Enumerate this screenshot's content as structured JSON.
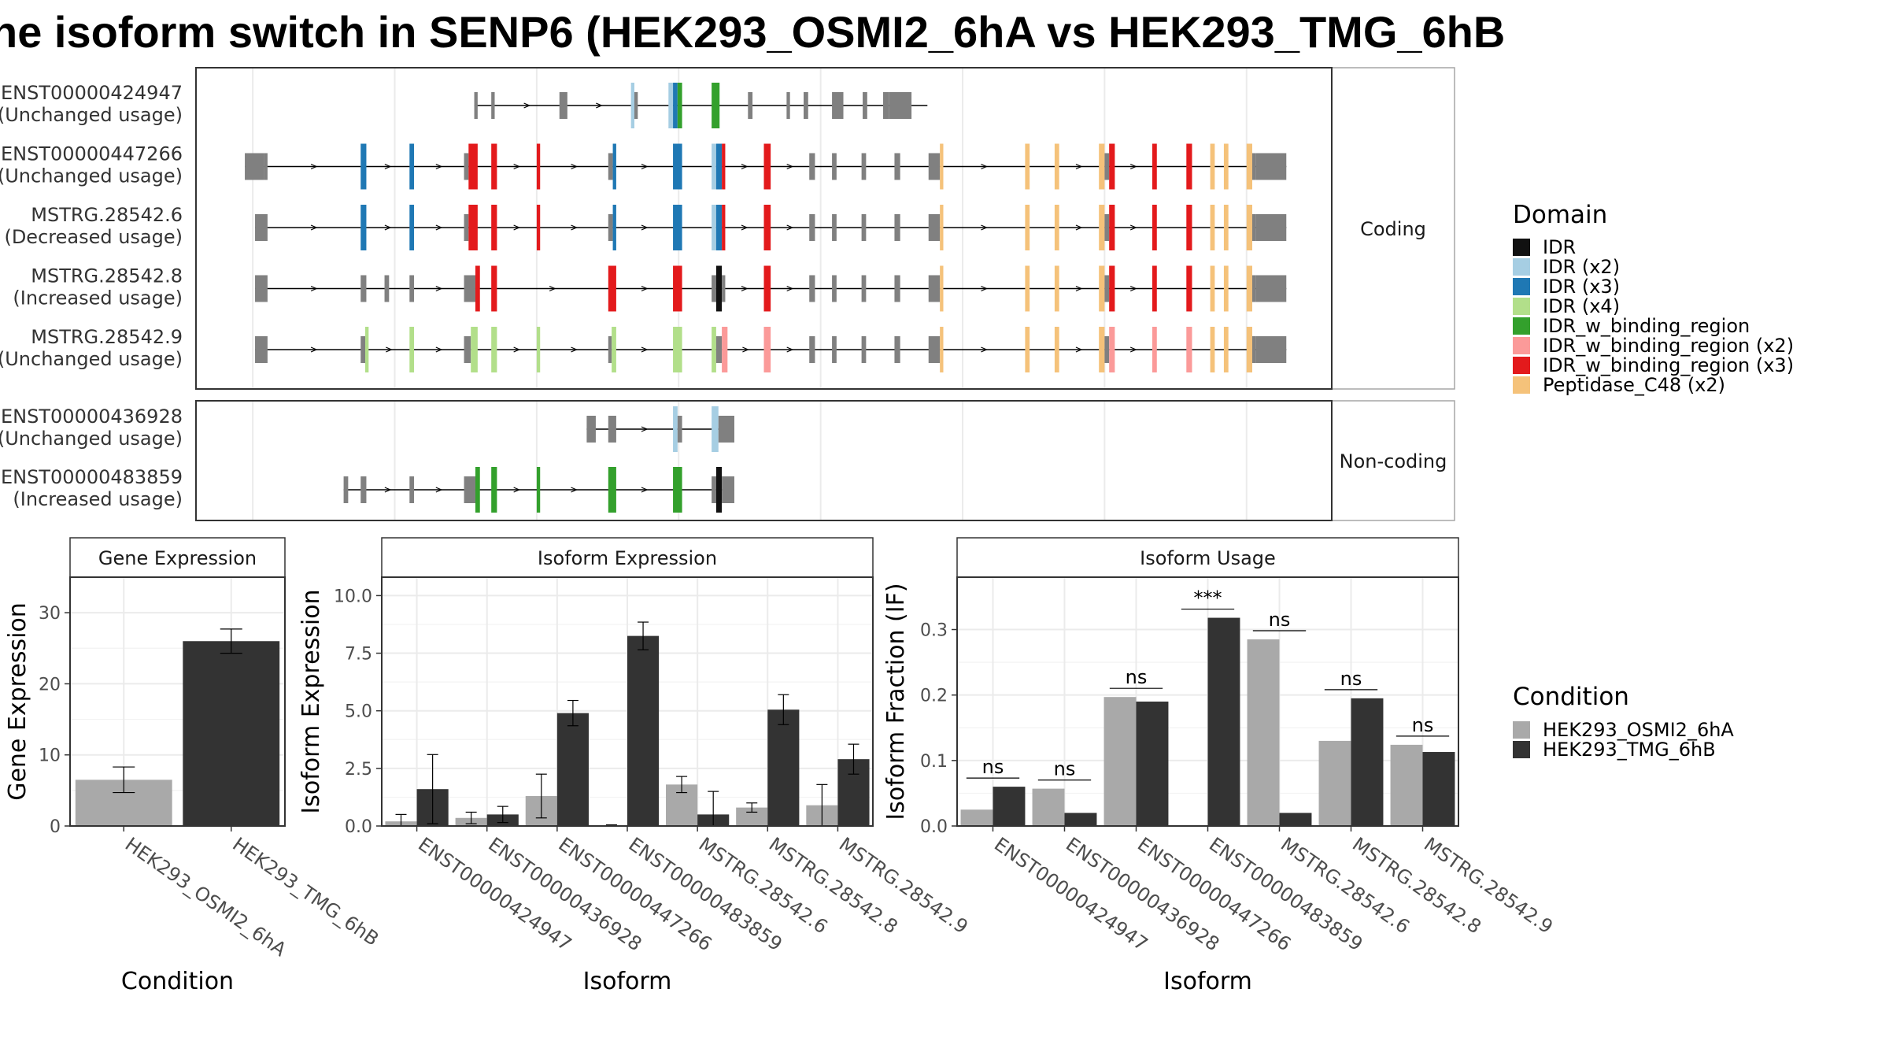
{
  "title": "he isoform switch in SENP6 (HEK293_OSMI2_6hA vs HEK293_TMG_6hB",
  "structure": {
    "x_range": [
      0,
      100
    ],
    "coding_label": "Coding",
    "noncoding_label": "Non-coding",
    "domain_colors": {
      "IDR": "#111111",
      "IDR (x2)": "#A6CEE3",
      "IDR (x3)": "#1F78B4",
      "IDR (x4)": "#B2DF8A",
      "IDR_w_binding_region": "#33A02C",
      "IDR_w_binding_region (x2)": "#FB9A99",
      "IDR_w_binding_region (x3)": "#E31A1C",
      "Peptidase_C48 (x2)": "#F5C27A",
      "utr": "#808080"
    },
    "coding": [
      {
        "id": "ENST00000424947",
        "usage": "(Unchanged usage)",
        "start": 24.5,
        "end": 64.4,
        "exons": [
          [
            24.5,
            24.8,
            "utr"
          ],
          [
            26.0,
            26.3,
            "utr"
          ],
          [
            32.0,
            32.7,
            "utr"
          ],
          [
            38.3,
            38.6,
            "IDR (x2)"
          ],
          [
            38.6,
            38.9,
            "utr"
          ],
          [
            41.6,
            42.0,
            "IDR (x2)"
          ],
          [
            42.0,
            42.4,
            "IDR (x3)"
          ],
          [
            42.4,
            42.8,
            "IDR_w_binding_region"
          ],
          [
            45.4,
            46.1,
            "IDR_w_binding_region"
          ],
          [
            48.6,
            49.0,
            "utr"
          ],
          [
            52.0,
            52.3,
            "utr"
          ],
          [
            53.5,
            53.9,
            "utr"
          ],
          [
            56.0,
            57.0,
            "utr"
          ],
          [
            58.7,
            59.1,
            "utr"
          ],
          [
            60.5,
            61.0,
            "utr"
          ],
          [
            61.0,
            63.0,
            "utr"
          ]
        ]
      },
      {
        "id": "ENST00000447266",
        "usage": "(Unchanged usage)",
        "start": 4.3,
        "end": 96.0,
        "exons": [
          [
            4.3,
            6.0,
            "utr"
          ],
          [
            6.0,
            6.3,
            "utr"
          ],
          [
            14.5,
            15.0,
            "IDR (x3)"
          ],
          [
            18.8,
            19.2,
            "IDR (x3)"
          ],
          [
            23.6,
            24.0,
            "utr"
          ],
          [
            24.0,
            24.8,
            "IDR_w_binding_region (x3)"
          ],
          [
            26.0,
            26.5,
            "IDR_w_binding_region (x3)"
          ],
          [
            30.0,
            30.3,
            "IDR_w_binding_region (x3)"
          ],
          [
            36.3,
            36.7,
            "utr"
          ],
          [
            36.7,
            37.0,
            "IDR (x3)"
          ],
          [
            42.0,
            42.8,
            "IDR (x3)"
          ],
          [
            45.4,
            45.8,
            "IDR (x2)"
          ],
          [
            45.8,
            46.3,
            "IDR (x3)"
          ],
          [
            46.3,
            46.6,
            "IDR_w_binding_region (x3)"
          ],
          [
            50.0,
            50.6,
            "IDR_w_binding_region (x3)"
          ],
          [
            54.0,
            54.5,
            "utr"
          ],
          [
            56.0,
            56.4,
            "utr"
          ],
          [
            58.6,
            59.0,
            "utr"
          ],
          [
            61.5,
            62.0,
            "utr"
          ],
          [
            64.5,
            65.5,
            "utr"
          ],
          [
            65.5,
            65.8,
            "Peptidase_C48 (x2)"
          ],
          [
            73.0,
            73.4,
            "Peptidase_C48 (x2)"
          ],
          [
            75.6,
            76.0,
            "Peptidase_C48 (x2)"
          ],
          [
            79.5,
            80.0,
            "Peptidase_C48 (x2)"
          ],
          [
            80.0,
            80.4,
            "utr"
          ],
          [
            80.4,
            80.9,
            "IDR_w_binding_region (x3)"
          ],
          [
            84.2,
            84.6,
            "IDR_w_binding_region (x3)"
          ],
          [
            87.2,
            87.7,
            "IDR_w_binding_region (x3)"
          ],
          [
            89.3,
            89.7,
            "Peptidase_C48 (x2)"
          ],
          [
            90.5,
            90.9,
            "Peptidase_C48 (x2)"
          ],
          [
            92.5,
            93.0,
            "Peptidase_C48 (x2)"
          ],
          [
            93.0,
            93.3,
            "utr"
          ],
          [
            93.3,
            96.0,
            "utr"
          ]
        ]
      },
      {
        "id": "MSTRG.28542.6",
        "usage": "(Decreased usage)",
        "start": 5.2,
        "end": 96.0,
        "exons": [
          [
            5.2,
            6.3,
            "utr"
          ],
          [
            14.5,
            15.0,
            "IDR (x3)"
          ],
          [
            18.8,
            19.2,
            "IDR (x3)"
          ],
          [
            23.6,
            24.0,
            "utr"
          ],
          [
            24.0,
            24.8,
            "IDR_w_binding_region (x3)"
          ],
          [
            26.0,
            26.5,
            "IDR_w_binding_region (x3)"
          ],
          [
            30.0,
            30.3,
            "IDR_w_binding_region (x3)"
          ],
          [
            36.3,
            36.7,
            "utr"
          ],
          [
            36.7,
            37.0,
            "IDR (x3)"
          ],
          [
            42.0,
            42.8,
            "IDR (x3)"
          ],
          [
            45.4,
            45.8,
            "IDR (x2)"
          ],
          [
            45.8,
            46.3,
            "IDR (x3)"
          ],
          [
            46.3,
            46.6,
            "IDR_w_binding_region (x3)"
          ],
          [
            50.0,
            50.6,
            "IDR_w_binding_region (x3)"
          ],
          [
            54.0,
            54.5,
            "utr"
          ],
          [
            56.0,
            56.4,
            "utr"
          ],
          [
            58.6,
            59.0,
            "utr"
          ],
          [
            61.5,
            62.0,
            "utr"
          ],
          [
            64.5,
            65.5,
            "utr"
          ],
          [
            65.5,
            65.8,
            "Peptidase_C48 (x2)"
          ],
          [
            73.0,
            73.4,
            "Peptidase_C48 (x2)"
          ],
          [
            75.6,
            76.0,
            "Peptidase_C48 (x2)"
          ],
          [
            79.5,
            80.0,
            "Peptidase_C48 (x2)"
          ],
          [
            80.0,
            80.4,
            "utr"
          ],
          [
            80.4,
            80.9,
            "IDR_w_binding_region (x3)"
          ],
          [
            84.2,
            84.6,
            "IDR_w_binding_region (x3)"
          ],
          [
            87.2,
            87.7,
            "IDR_w_binding_region (x3)"
          ],
          [
            89.3,
            89.7,
            "Peptidase_C48 (x2)"
          ],
          [
            90.5,
            90.9,
            "Peptidase_C48 (x2)"
          ],
          [
            92.5,
            93.0,
            "Peptidase_C48 (x2)"
          ],
          [
            93.0,
            93.3,
            "utr"
          ],
          [
            93.3,
            96.0,
            "utr"
          ]
        ]
      },
      {
        "id": "MSTRG.28542.8",
        "usage": "(Increased usage)",
        "start": 5.2,
        "end": 96.0,
        "exons": [
          [
            5.2,
            6.3,
            "utr"
          ],
          [
            14.5,
            15.0,
            "utr"
          ],
          [
            16.6,
            17.0,
            "utr"
          ],
          [
            18.8,
            19.2,
            "utr"
          ],
          [
            23.6,
            24.6,
            "utr"
          ],
          [
            24.6,
            25.0,
            "IDR_w_binding_region (x3)"
          ],
          [
            26.0,
            26.5,
            "IDR_w_binding_region (x3)"
          ],
          [
            36.3,
            37.0,
            "IDR_w_binding_region (x3)"
          ],
          [
            42.0,
            42.8,
            "IDR_w_binding_region (x3)"
          ],
          [
            45.4,
            45.8,
            "utr"
          ],
          [
            45.8,
            46.3,
            "IDR"
          ],
          [
            46.3,
            46.6,
            "utr"
          ],
          [
            50.0,
            50.6,
            "IDR_w_binding_region (x3)"
          ],
          [
            54.0,
            54.5,
            "utr"
          ],
          [
            56.0,
            56.4,
            "utr"
          ],
          [
            58.6,
            59.0,
            "utr"
          ],
          [
            61.5,
            62.0,
            "utr"
          ],
          [
            64.5,
            65.5,
            "utr"
          ],
          [
            65.5,
            65.8,
            "Peptidase_C48 (x2)"
          ],
          [
            73.0,
            73.4,
            "Peptidase_C48 (x2)"
          ],
          [
            75.6,
            76.0,
            "Peptidase_C48 (x2)"
          ],
          [
            79.5,
            80.0,
            "Peptidase_C48 (x2)"
          ],
          [
            80.0,
            80.4,
            "utr"
          ],
          [
            80.4,
            80.9,
            "IDR_w_binding_region (x3)"
          ],
          [
            84.2,
            84.6,
            "IDR_w_binding_region (x3)"
          ],
          [
            87.2,
            87.7,
            "IDR_w_binding_region (x3)"
          ],
          [
            89.3,
            89.7,
            "Peptidase_C48 (x2)"
          ],
          [
            90.5,
            90.9,
            "Peptidase_C48 (x2)"
          ],
          [
            92.5,
            93.0,
            "Peptidase_C48 (x2)"
          ],
          [
            93.0,
            93.3,
            "utr"
          ],
          [
            93.3,
            96.0,
            "utr"
          ]
        ]
      },
      {
        "id": "MSTRG.28542.9",
        "usage": "(Unchanged usage)",
        "start": 5.2,
        "end": 96.0,
        "exons": [
          [
            5.2,
            6.3,
            "utr"
          ],
          [
            14.5,
            14.9,
            "utr"
          ],
          [
            14.9,
            15.2,
            "IDR (x4)"
          ],
          [
            18.8,
            19.2,
            "IDR (x4)"
          ],
          [
            23.6,
            24.2,
            "utr"
          ],
          [
            24.2,
            24.8,
            "IDR (x4)"
          ],
          [
            26.0,
            26.5,
            "IDR (x4)"
          ],
          [
            30.0,
            30.3,
            "IDR (x4)"
          ],
          [
            36.3,
            36.6,
            "utr"
          ],
          [
            36.6,
            37.0,
            "IDR (x4)"
          ],
          [
            42.0,
            42.8,
            "IDR (x4)"
          ],
          [
            45.4,
            45.8,
            "IDR (x4)"
          ],
          [
            45.8,
            46.3,
            "utr"
          ],
          [
            46.3,
            46.8,
            "IDR_w_binding_region (x2)"
          ],
          [
            50.0,
            50.6,
            "IDR_w_binding_region (x2)"
          ],
          [
            54.0,
            54.5,
            "utr"
          ],
          [
            56.0,
            56.4,
            "utr"
          ],
          [
            58.6,
            59.0,
            "utr"
          ],
          [
            61.5,
            62.0,
            "utr"
          ],
          [
            64.5,
            65.5,
            "utr"
          ],
          [
            65.5,
            65.8,
            "Peptidase_C48 (x2)"
          ],
          [
            73.0,
            73.4,
            "Peptidase_C48 (x2)"
          ],
          [
            75.6,
            76.0,
            "Peptidase_C48 (x2)"
          ],
          [
            79.5,
            80.0,
            "Peptidase_C48 (x2)"
          ],
          [
            80.0,
            80.4,
            "utr"
          ],
          [
            80.4,
            80.9,
            "IDR_w_binding_region (x2)"
          ],
          [
            84.2,
            84.6,
            "IDR_w_binding_region (x2)"
          ],
          [
            87.2,
            87.7,
            "IDR_w_binding_region (x2)"
          ],
          [
            89.3,
            89.7,
            "Peptidase_C48 (x2)"
          ],
          [
            90.5,
            90.9,
            "Peptidase_C48 (x2)"
          ],
          [
            92.5,
            93.0,
            "Peptidase_C48 (x2)"
          ],
          [
            93.0,
            93.3,
            "utr"
          ],
          [
            93.3,
            96.0,
            "utr"
          ]
        ]
      }
    ],
    "noncoding": [
      {
        "id": "ENST00000436928",
        "usage": "(Unchanged usage)",
        "start": 34.4,
        "end": 47.4,
        "exons": [
          [
            34.4,
            35.2,
            "utr"
          ],
          [
            36.3,
            37.0,
            "utr"
          ],
          [
            42.0,
            42.4,
            "IDR (x2)"
          ],
          [
            42.4,
            42.8,
            "utr"
          ],
          [
            45.4,
            46.0,
            "IDR (x2)"
          ],
          [
            46.0,
            47.4,
            "utr"
          ]
        ]
      },
      {
        "id": "ENST00000483859",
        "usage": "(Increased usage)",
        "start": 13.0,
        "end": 47.4,
        "exons": [
          [
            13.0,
            13.4,
            "utr"
          ],
          [
            14.5,
            15.0,
            "utr"
          ],
          [
            18.8,
            19.2,
            "utr"
          ],
          [
            23.6,
            24.6,
            "utr"
          ],
          [
            24.6,
            25.0,
            "IDR_w_binding_region"
          ],
          [
            26.0,
            26.5,
            "IDR_w_binding_region"
          ],
          [
            30.0,
            30.3,
            "IDR_w_binding_region"
          ],
          [
            36.3,
            37.0,
            "IDR_w_binding_region"
          ],
          [
            42.0,
            42.8,
            "IDR_w_binding_region"
          ],
          [
            45.4,
            45.8,
            "utr"
          ],
          [
            45.8,
            46.3,
            "IDR"
          ],
          [
            46.3,
            47.4,
            "utr"
          ]
        ]
      }
    ]
  },
  "legend_domain": {
    "title": "Domain",
    "items": [
      "IDR",
      "IDR (x2)",
      "IDR (x3)",
      "IDR (x4)",
      "IDR_w_binding_region",
      "IDR_w_binding_region (x2)",
      "IDR_w_binding_region (x3)",
      "Peptidase_C48 (x2)"
    ]
  },
  "legend_condition": {
    "title": "Condition",
    "items": [
      {
        "name": "HEK293_OSMI2_6hA",
        "color": "#A9A9A9"
      },
      {
        "name": "HEK293_TMG_6hB",
        "color": "#333333"
      }
    ]
  },
  "chart_data": [
    {
      "type": "bar",
      "title": "Gene Expression",
      "xlabel": "Condition",
      "ylabel": "Gene Expression",
      "ylim": [
        0,
        35
      ],
      "yticks": [
        0,
        10,
        20,
        30
      ],
      "categories": [
        "HEK293_OSMI2_6hA",
        "HEK293_TMG_6hB"
      ],
      "values": [
        6.5,
        26.0
      ],
      "errors": [
        1.8,
        1.7
      ]
    },
    {
      "type": "bar",
      "title": "Isoform Expression",
      "xlabel": "Isoform",
      "ylabel": "Isoform Expression",
      "ylim": [
        0,
        10.8
      ],
      "yticks": [
        0.0,
        2.5,
        5.0,
        7.5,
        10.0
      ],
      "tick_labels": [
        "0.0",
        "2.5",
        "5.0",
        "7.5",
        "10.0"
      ],
      "categories": [
        "ENST00000424947",
        "ENST00000436928",
        "ENST00000447266",
        "ENST00000483859",
        "MSTRG.28542.6",
        "MSTRG.28542.8",
        "MSTRG.28542.9"
      ],
      "series": [
        {
          "name": "HEK293_OSMI2_6hA",
          "values": [
            0.2,
            0.35,
            1.3,
            0.0,
            1.8,
            0.8,
            0.9
          ],
          "errors": [
            0.3,
            0.25,
            0.95,
            0.05,
            0.35,
            0.2,
            0.9
          ]
        },
        {
          "name": "HEK293_TMG_6hB",
          "values": [
            1.6,
            0.5,
            4.9,
            8.25,
            0.5,
            5.05,
            2.9
          ],
          "errors": [
            1.5,
            0.35,
            0.55,
            0.6,
            1.0,
            0.65,
            0.65
          ]
        }
      ]
    },
    {
      "type": "bar",
      "title": "Isoform Usage",
      "xlabel": "Isoform",
      "ylabel": "Isoform Fraction (IF)",
      "ylim": [
        0,
        0.38
      ],
      "yticks": [
        0.0,
        0.1,
        0.2,
        0.3
      ],
      "tick_labels": [
        "0.0",
        "0.1",
        "0.2",
        "0.3"
      ],
      "categories": [
        "ENST00000424947",
        "ENST00000436928",
        "ENST00000447266",
        "ENST00000483859",
        "MSTRG.28542.6",
        "MSTRG.28542.8",
        "MSTRG.28542.9"
      ],
      "series": [
        {
          "name": "HEK293_OSMI2_6hA",
          "values": [
            0.025,
            0.057,
            0.197,
            0.0,
            0.285,
            0.13,
            0.124
          ]
        },
        {
          "name": "HEK293_TMG_6hB",
          "values": [
            0.06,
            0.02,
            0.19,
            0.318,
            0.02,
            0.195,
            0.113
          ]
        }
      ],
      "significance": [
        "ns",
        "ns",
        "ns",
        "***",
        "ns",
        "ns",
        "ns"
      ]
    }
  ]
}
